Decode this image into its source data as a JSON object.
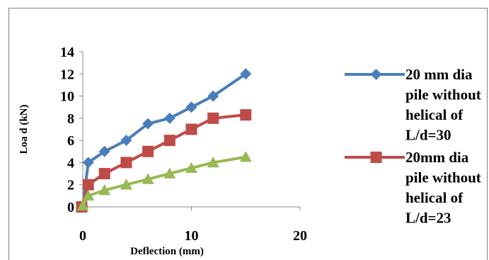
{
  "chart_data": {
    "type": "line",
    "xlabel": "Deflection (mm)",
    "ylabel": "Loa d (kN)",
    "xlim": [
      0,
      20
    ],
    "ylim": [
      0,
      14
    ],
    "xticks": [
      0,
      10,
      20
    ],
    "yticks": [
      0,
      2,
      4,
      6,
      8,
      10,
      12,
      14
    ],
    "grid": false,
    "legend_position": "right",
    "series": [
      {
        "name": "20 mm dia pile without helical of L/d=30",
        "legend_lines": [
          "20 mm dia",
          "pile without",
          "helical of",
          "L/d=30"
        ],
        "color": "#4a7ebb",
        "marker": "diamond",
        "show_in_legend": true,
        "points": [
          [
            0,
            0
          ],
          [
            0.5,
            4
          ],
          [
            2,
            5
          ],
          [
            4,
            6
          ],
          [
            6,
            7.5
          ],
          [
            8,
            8
          ],
          [
            10,
            9
          ],
          [
            12,
            10
          ],
          [
            15,
            12
          ]
        ]
      },
      {
        "name": "20mm dia pile without helical of L/d=23",
        "legend_lines": [
          "20mm dia",
          "pile without",
          "helical of",
          "L/d=23"
        ],
        "color": "#be4b48",
        "marker": "square",
        "show_in_legend": true,
        "points": [
          [
            -0.1,
            0
          ],
          [
            0.5,
            2
          ],
          [
            2,
            3
          ],
          [
            4,
            4
          ],
          [
            6,
            5
          ],
          [
            8,
            6
          ],
          [
            10,
            7
          ],
          [
            12,
            8
          ],
          [
            15,
            8.3
          ]
        ]
      },
      {
        "name": "",
        "legend_lines": [],
        "color": "#98b954",
        "marker": "triangle",
        "show_in_legend": false,
        "points": [
          [
            0,
            0.1
          ],
          [
            0.5,
            1
          ],
          [
            2,
            1.5
          ],
          [
            4,
            2
          ],
          [
            6,
            2.5
          ],
          [
            8,
            3
          ],
          [
            10,
            3.5
          ],
          [
            12,
            4
          ],
          [
            15,
            4.5
          ]
        ]
      }
    ]
  }
}
